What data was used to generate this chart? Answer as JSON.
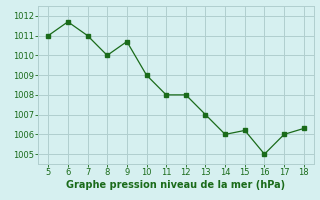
{
  "x": [
    5,
    6,
    7,
    8,
    9,
    10,
    11,
    12,
    13,
    14,
    15,
    16,
    17,
    18
  ],
  "y": [
    1011,
    1011.7,
    1011,
    1010,
    1010.7,
    1009,
    1008,
    1008,
    1007,
    1006,
    1006.2,
    1005,
    1006,
    1006.3
  ],
  "line_color": "#1a6b1a",
  "marker": "s",
  "marker_size": 2.5,
  "bg_color": "#d6f0f0",
  "grid_color": "#b0cece",
  "xlabel": "Graphe pression niveau de la mer (hPa)",
  "xlabel_fontsize": 7,
  "xlabel_bold": true,
  "tick_fontsize": 6,
  "xlim": [
    4.5,
    18.5
  ],
  "ylim": [
    1004.5,
    1012.5
  ],
  "yticks": [
    1005,
    1006,
    1007,
    1008,
    1009,
    1010,
    1011,
    1012
  ],
  "xticks": [
    5,
    6,
    7,
    8,
    9,
    10,
    11,
    12,
    13,
    14,
    15,
    16,
    17,
    18
  ]
}
